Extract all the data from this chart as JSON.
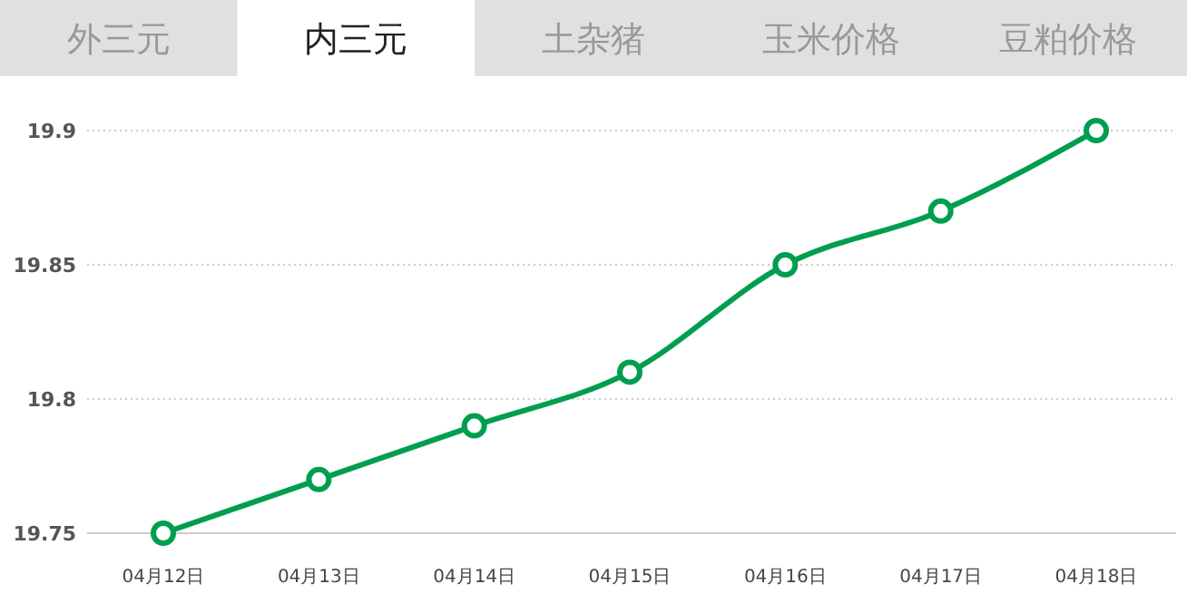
{
  "chart_data": {
    "type": "line",
    "title": "内三元",
    "annotations": [
      "外三元",
      "土杂猪",
      "玉米价格",
      "豆粕价格"
    ],
    "categories": [
      "04月12日",
      "04月13日",
      "04月14日",
      "04月15日",
      "04月16日",
      "04月17日",
      "04月18日"
    ],
    "series": [
      {
        "color": "#009e4f",
        "values": [
          19.75,
          19.77,
          19.79,
          19.81,
          19.85,
          19.87,
          19.9
        ]
      }
    ],
    "ylim": [
      19.75,
      19.9
    ],
    "yticks": [
      19.75,
      19.8,
      19.85,
      19.9
    ],
    "grid": "y",
    "marker": "circle",
    "line_style": "solid"
  }
}
